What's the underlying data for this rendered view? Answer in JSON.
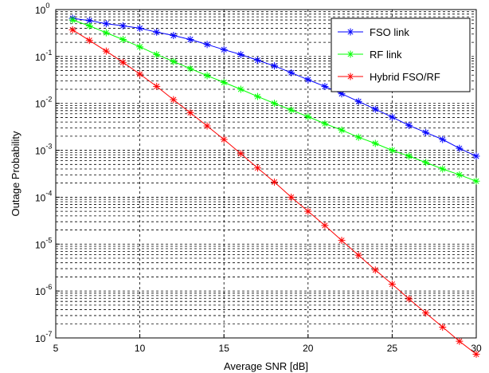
{
  "chart_data": {
    "type": "line",
    "xlabel": "Average SNR [dB]",
    "ylabel": "Outage Probability",
    "xlim": [
      5,
      30
    ],
    "ylim": [
      1e-07,
      1
    ],
    "yscale": "log",
    "grid": true,
    "legend_position": "top-right",
    "x_ticks": [
      "5",
      "10",
      "15",
      "20",
      "25",
      "30"
    ],
    "y_ticks": [
      {
        "base": "10",
        "exp": "-7"
      },
      {
        "base": "10",
        "exp": "-6"
      },
      {
        "base": "10",
        "exp": "-5"
      },
      {
        "base": "10",
        "exp": "-4"
      },
      {
        "base": "10",
        "exp": "-3"
      },
      {
        "base": "10",
        "exp": "-2"
      },
      {
        "base": "10",
        "exp": "-1"
      },
      {
        "base": "10",
        "exp": "0"
      }
    ],
    "x": [
      6,
      7,
      8,
      9,
      10,
      11,
      12,
      13,
      14,
      15,
      16,
      17,
      18,
      19,
      20,
      21,
      22,
      23,
      24,
      25,
      26,
      27,
      28,
      29,
      30
    ],
    "series": [
      {
        "name": "FSO link",
        "color": "#0000ff",
        "values": [
          0.65,
          0.58,
          0.5,
          0.45,
          0.4,
          0.33,
          0.28,
          0.23,
          0.18,
          0.14,
          0.11,
          0.083,
          0.063,
          0.045,
          0.032,
          0.023,
          0.016,
          0.011,
          0.0075,
          0.0051,
          0.0034,
          0.0024,
          0.0017,
          0.0011,
          0.00075
        ]
      },
      {
        "name": "RF link",
        "color": "#00ff00",
        "values": [
          0.6,
          0.45,
          0.32,
          0.23,
          0.16,
          0.11,
          0.078,
          0.055,
          0.039,
          0.028,
          0.02,
          0.014,
          0.01,
          0.0072,
          0.0052,
          0.0037,
          0.0027,
          0.0019,
          0.0014,
          0.001,
          0.00075,
          0.00055,
          0.0004,
          0.0003,
          0.00022
        ]
      },
      {
        "name": "Hybrid FSO/RF",
        "color": "#ff0000",
        "values": [
          0.37,
          0.22,
          0.13,
          0.075,
          0.042,
          0.023,
          0.012,
          0.0063,
          0.0033,
          0.0017,
          0.00085,
          0.00042,
          0.00021,
          0.0001,
          5e-05,
          2.5e-05,
          1.2e-05,
          5.8e-06,
          2.8e-06,
          1.4e-06,
          6.8e-07,
          3.4e-07,
          1.7e-07,
          8.5e-08,
          4.5e-08
        ]
      }
    ]
  }
}
